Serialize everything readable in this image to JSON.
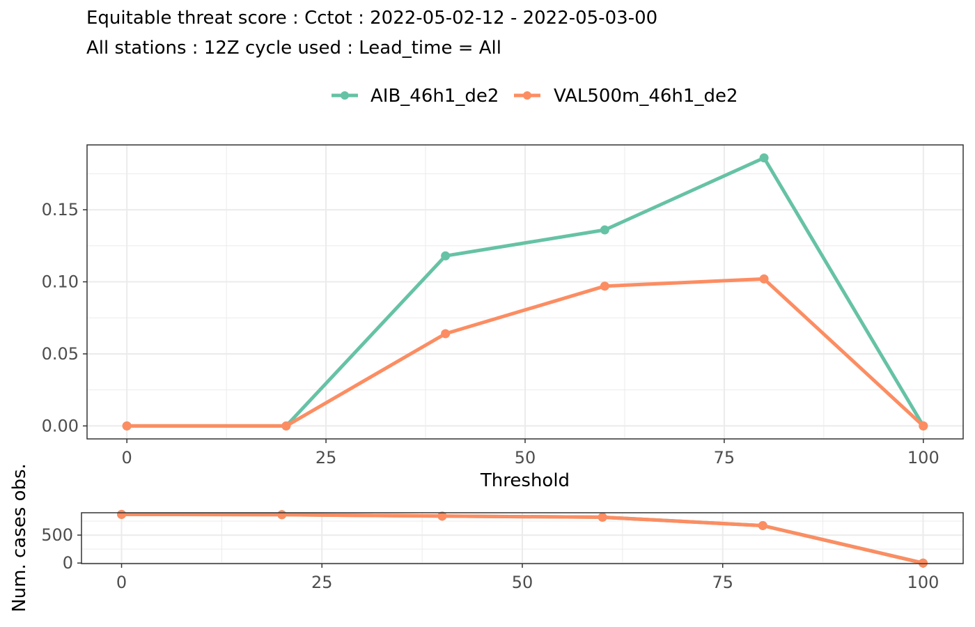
{
  "chart_data": [
    {
      "type": "line",
      "title": "Equitable threat score : Cctot : 2022-05-02-12 - 2022-05-03-00",
      "subtitle": "All stations : 12Z cycle used : Lead_time = All",
      "xlabel": "Threshold",
      "ylabel": "",
      "x": [
        0,
        20,
        40,
        60,
        80,
        100
      ],
      "xlim": [
        -5,
        105
      ],
      "ylim": [
        -0.009,
        0.195
      ],
      "xticks": [
        "0",
        "25",
        "50",
        "75",
        "100"
      ],
      "xtick_values": [
        0,
        25,
        50,
        75,
        100
      ],
      "yticks": [
        "0.00",
        "0.05",
        "0.10",
        "0.15"
      ],
      "ytick_values": [
        0,
        0.05,
        0.1,
        0.15
      ],
      "grid": true,
      "legend_position": "top",
      "series": [
        {
          "name": "AIB_46h1_de2",
          "color": "#66c2a5",
          "values": [
            0,
            0,
            0.118,
            0.136,
            0.186,
            0
          ]
        },
        {
          "name": "VAL500m_46h1_de2",
          "color": "#fc8d62",
          "values": [
            0,
            0,
            0.064,
            0.097,
            0.102,
            0
          ]
        }
      ]
    },
    {
      "type": "line",
      "title": "",
      "xlabel": "",
      "ylabel": "Num. cases obs.",
      "x": [
        0,
        20,
        40,
        60,
        80,
        100
      ],
      "xlim": [
        -5,
        105
      ],
      "ylim": [
        -10,
        900
      ],
      "xticks": [
        "0",
        "25",
        "50",
        "75",
        "100"
      ],
      "xtick_values": [
        0,
        25,
        50,
        75,
        100
      ],
      "yticks": [
        "0",
        "500"
      ],
      "ytick_values": [
        0,
        500
      ],
      "grid": true,
      "series": [
        {
          "name": "AIB_46h1_de2",
          "color": "#66c2a5",
          "values": [
            870,
            865,
            840,
            820,
            670,
            0
          ]
        },
        {
          "name": "VAL500m_46h1_de2",
          "color": "#fc8d62",
          "values": [
            870,
            865,
            840,
            820,
            670,
            0
          ]
        }
      ]
    }
  ]
}
